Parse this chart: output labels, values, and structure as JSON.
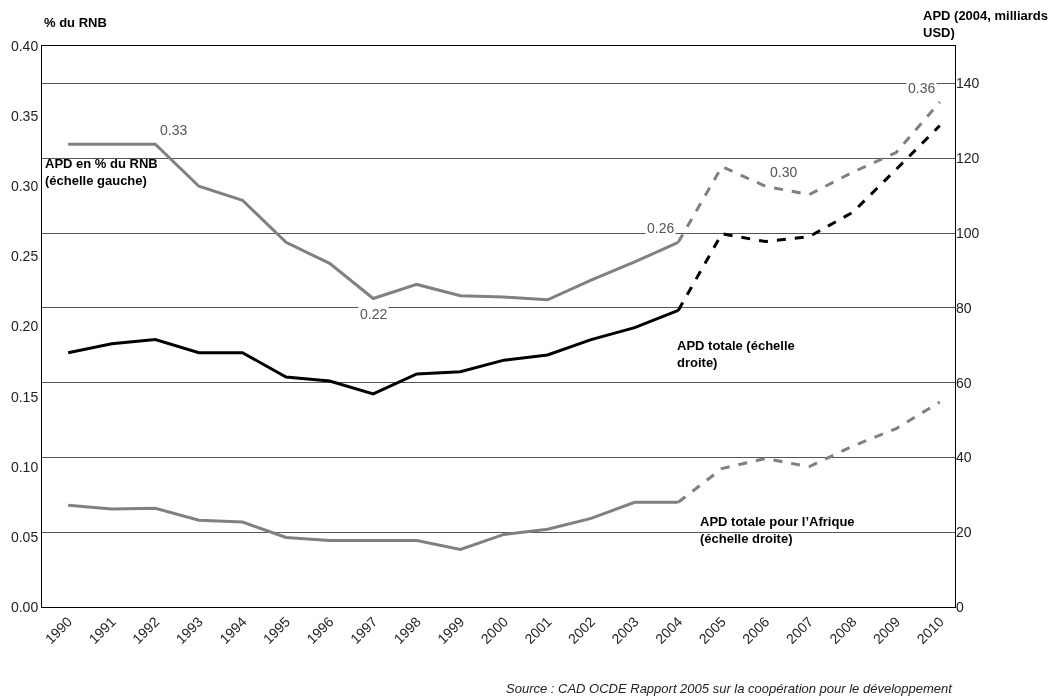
{
  "chart_data": {
    "type": "line",
    "ylabel": "% du RNB",
    "y2label": "APD (2004, milliards\nUSD)",
    "xlim": [
      1989.4,
      2010.35
    ],
    "xticks": [
      1990,
      1991,
      1992,
      1993,
      1994,
      1995,
      1996,
      1997,
      1998,
      1999,
      2000,
      2001,
      2002,
      2003,
      2004,
      2005,
      2006,
      2007,
      2008,
      2009,
      2010
    ],
    "ylim": [
      0,
      0.4
    ],
    "yticks": [
      {
        "value": 0,
        "label": "0.00"
      },
      {
        "value": 0.05,
        "label": "0.05"
      },
      {
        "value": 0.1,
        "label": "0.10"
      },
      {
        "value": 0.15,
        "label": "0.15"
      },
      {
        "value": 0.2,
        "label": "0.20"
      },
      {
        "value": 0.25,
        "label": "0.25"
      },
      {
        "value": 0.3,
        "label": "0.30"
      },
      {
        "value": 0.35,
        "label": "0.35"
      },
      {
        "value": 0.4,
        "label": "0.40"
      }
    ],
    "y2lim": [
      0,
      150
    ],
    "y2ticks": [
      0,
      20,
      40,
      60,
      80,
      100,
      120,
      140
    ],
    "grid": "y",
    "legend": false,
    "marker": "none",
    "series": [
      {
        "name": "APD en % du RNB\n(échelle gauche)",
        "color": "#808080",
        "line_style": "solid",
        "x": [
          1990,
          1991,
          1992,
          1993,
          1994,
          1995,
          1996,
          1997,
          1998,
          1999,
          2000,
          2001,
          2002,
          2003,
          2004
        ],
        "values": [
          0.33,
          0.33,
          0.33,
          0.3,
          0.29,
          0.26,
          0.245,
          0.22,
          0.23,
          0.222,
          0.221,
          0.219,
          0.233,
          0.246,
          0.26
        ],
        "value_labels": [
          null,
          null,
          "0.33",
          null,
          null,
          null,
          null,
          "0.22",
          null,
          null,
          null,
          null,
          null,
          null,
          "0.26"
        ]
      },
      {
        "color": "#808080",
        "line_style": "dashed",
        "x": [
          2004,
          2005,
          2006,
          2007,
          2008,
          2009,
          2010
        ],
        "values": [
          0.26,
          0.314,
          0.3,
          0.294,
          0.31,
          0.324,
          0.36
        ],
        "value_labels": [
          null,
          null,
          "0.30",
          null,
          null,
          null,
          "0.36"
        ]
      },
      {
        "name": "APD totale (échelle\ndroite)",
        "color": "#000000",
        "axis": "y2",
        "line_style": "solid",
        "x": [
          1990,
          1991,
          1992,
          1993,
          1994,
          1995,
          1996,
          1997,
          1998,
          1999,
          2000,
          2001,
          2002,
          2003,
          2004
        ],
        "values": [
          68,
          70.4,
          71.5,
          68,
          68,
          61.5,
          60.4,
          57,
          62.3,
          62.9,
          66,
          67.4,
          71.5,
          74.7,
          79.3
        ]
      },
      {
        "color": "#000000",
        "axis": "y2",
        "line_style": "dashed",
        "x": [
          2004,
          2005,
          2006,
          2007,
          2008,
          2009,
          2010
        ],
        "values": [
          79.3,
          99.8,
          97.7,
          99,
          105.5,
          117,
          128.7
        ]
      },
      {
        "name": "APD totale pour l’Afrique\n(échelle droite)",
        "color": "#808080",
        "axis": "y2",
        "line_style": "solid",
        "x": [
          1990,
          1991,
          1992,
          1993,
          1994,
          1995,
          1996,
          1997,
          1998,
          1999,
          2000,
          2001,
          2002,
          2003,
          2004
        ],
        "values": [
          27.2,
          26.2,
          26.4,
          23.2,
          22.7,
          18.6,
          17.8,
          17.8,
          17.8,
          15.4,
          19.4,
          20.8,
          23.7,
          28,
          28
        ]
      },
      {
        "color": "#808080",
        "axis": "y2",
        "line_style": "dashed",
        "x": [
          2004,
          2005,
          2006,
          2007,
          2008,
          2009,
          2010
        ],
        "values": [
          28,
          37,
          39.7,
          37.5,
          43,
          47.7,
          54.8
        ]
      }
    ],
    "annotations": [
      "Source : CAD OCDE Rapport 2005 sur la coopération pour le développement"
    ]
  }
}
